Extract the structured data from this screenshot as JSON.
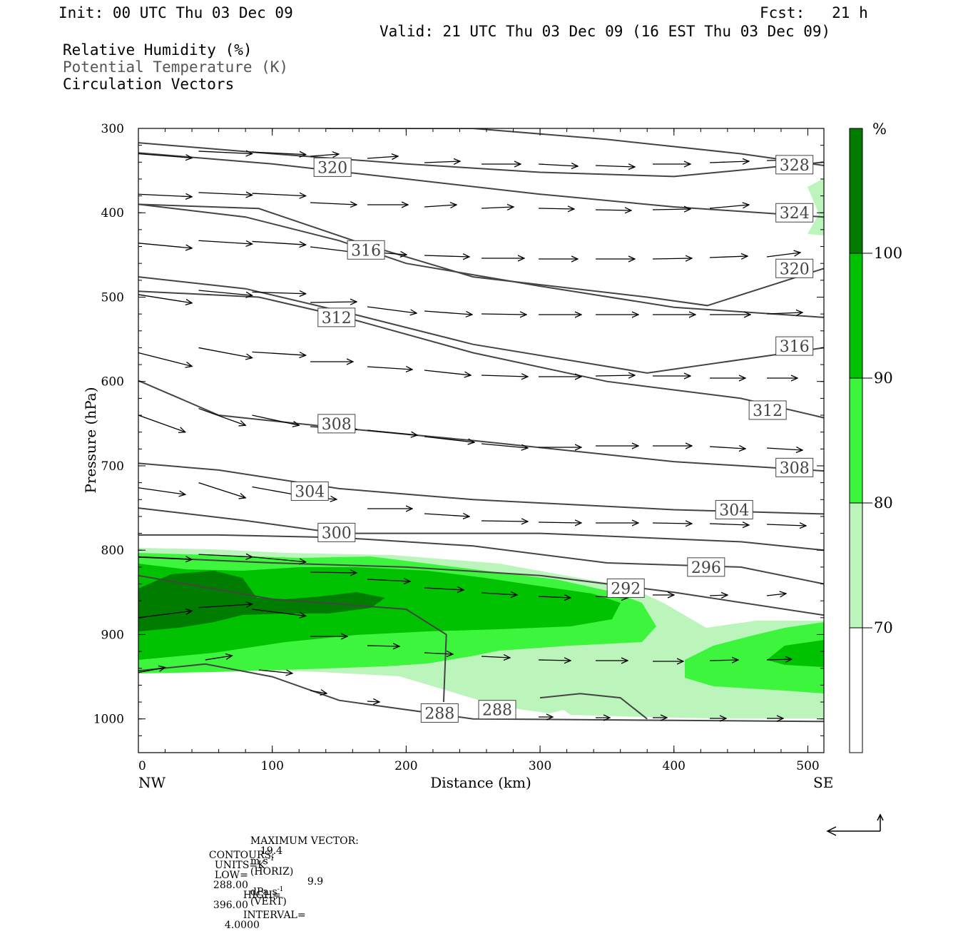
{
  "header": {
    "init": "Init: 00 UTC Thu 03 Dec 09",
    "fcst": "Fcst:   21 h",
    "valid": "Valid: 21 UTC Thu 03 Dec 09 (16 EST Thu 03 Dec 09)",
    "fields": [
      "Relative Humidity (%)",
      "Potential Temperature (K)",
      "Circulation Vectors"
    ]
  },
  "footer": {
    "max_vector_label": "MAXIMUM VECTOR:",
    "max_horiz_value": "19.4",
    "max_horiz_unit": "m s",
    "max_horiz_note": "(HORIZ)",
    "max_vert_value": "9.9",
    "max_vert_unit": "dPa s",
    "max_vert_note": "(VERT)",
    "exponent": "-1",
    "contours_label": "CONTOURS:",
    "units": "UNITS=K",
    "low": "LOW=",
    "low_value": "288.00",
    "high": "HIGH=",
    "high_value": "396.00",
    "interval": "INTERVAL=",
    "interval_value": "4.0000"
  },
  "chart_data": {
    "type": "contour-cross-section",
    "xlabel": "Distance (km)",
    "ylabel": "Pressure (hPa)",
    "xlim": [
      0,
      512
    ],
    "ylim": [
      300,
      1040
    ],
    "x_ticks": [
      "0",
      "100",
      "200",
      "300",
      "400",
      "500"
    ],
    "x_tick_values": [
      0,
      100,
      200,
      300,
      400,
      500
    ],
    "x_end_labels": {
      "left": "NW",
      "right": "SE"
    },
    "y_ticks": [
      "300",
      "400",
      "500",
      "600",
      "700",
      "800",
      "900",
      "1000"
    ],
    "y_tick_values": [
      300,
      400,
      500,
      600,
      700,
      800,
      900,
      1000
    ],
    "colorbar": {
      "unit": "%",
      "levels": [
        "70",
        "80",
        "90",
        "100"
      ],
      "level_values": [
        70,
        80,
        90,
        100
      ],
      "colors": [
        "#ffffff",
        "#bbf5bb",
        "#3df53d",
        "#00c200",
        "#007c00"
      ]
    },
    "theta_contours": [
      {
        "value": 328,
        "label": "328",
        "label_at": [
          490,
          343
        ],
        "points": [
          [
            0,
            317
          ],
          [
            100,
            330
          ],
          [
            200,
            342
          ],
          [
            300,
            352
          ],
          [
            400,
            357
          ],
          [
            512,
            340
          ]
        ]
      },
      {
        "value": 324,
        "label": "324",
        "label_at": [
          490,
          400
        ],
        "points": [
          [
            0,
            329
          ],
          [
            100,
            342
          ],
          [
            200,
            360
          ],
          [
            300,
            378
          ],
          [
            400,
            393
          ],
          [
            512,
            405
          ]
        ]
      },
      {
        "value": 320,
        "label": "320",
        "label_at": [
          145,
          346
        ],
        "points": [
          [
            140,
            300
          ],
          [
            250,
            300
          ],
          [
            350,
            313
          ],
          [
            450,
            330
          ],
          [
            512,
            344
          ]
        ]
      },
      {
        "value": 320,
        "label": "320",
        "label_at": [
          490,
          466
        ],
        "points": [
          [
            0,
            390
          ],
          [
            80,
            405
          ],
          [
            150,
            433
          ],
          [
            200,
            460
          ],
          [
            300,
            487
          ],
          [
            400,
            512
          ],
          [
            512,
            524
          ]
        ]
      },
      {
        "value": 316,
        "label": "316",
        "label_at": [
          170,
          444
        ],
        "points": [
          [
            0,
            390
          ],
          [
            90,
            395
          ],
          [
            170,
            438
          ],
          [
            250,
            476
          ],
          [
            380,
            500
          ],
          [
            425,
            510
          ],
          [
            512,
            466
          ]
        ]
      },
      {
        "value": 316,
        "label": "316",
        "label_at": [
          490,
          558
        ],
        "points": [
          [
            0,
            476
          ],
          [
            80,
            490
          ],
          [
            160,
            520
          ],
          [
            250,
            556
          ],
          [
            380,
            590
          ],
          [
            512,
            560
          ]
        ]
      },
      {
        "value": 312,
        "label": "312",
        "label_at": [
          148,
          524
        ],
        "points": [
          [
            0,
            493
          ],
          [
            90,
            500
          ],
          [
            150,
            522
          ],
          [
            250,
            566
          ],
          [
            350,
            600
          ],
          [
            450,
            620
          ],
          [
            512,
            643
          ]
        ]
      },
      {
        "value": 312,
        "label": "312",
        "label_at": [
          470,
          634
        ],
        "points": [
          [
            0,
            599
          ],
          [
            60,
            640
          ],
          [
            150,
            655
          ],
          [
            250,
            670
          ],
          [
            400,
            695
          ],
          [
            512,
            706
          ]
        ]
      },
      {
        "value": 308,
        "label": "308",
        "label_at": [
          148,
          650
        ],
        "points": [
          [
            0,
            697
          ],
          [
            60,
            705
          ],
          [
            150,
            727
          ],
          [
            250,
            740
          ],
          [
            400,
            752
          ],
          [
            512,
            757
          ]
        ]
      },
      {
        "value": 308,
        "label": "308",
        "label_at": [
          490,
          702
        ],
        "points": [
          [
            0,
            750
          ],
          [
            80,
            765
          ],
          [
            150,
            780
          ],
          [
            300,
            780
          ],
          [
            450,
            790
          ],
          [
            512,
            800
          ]
        ]
      },
      {
        "value": 304,
        "label": "304",
        "label_at": [
          128,
          730
        ],
        "points": [
          [
            0,
            782
          ],
          [
            60,
            782
          ],
          [
            150,
            785
          ],
          [
            250,
            795
          ],
          [
            350,
            815
          ],
          [
            450,
            820
          ],
          [
            512,
            840
          ]
        ]
      },
      {
        "value": 304,
        "label": "304",
        "label_at": [
          445,
          752
        ],
        "points": [
          [
            0,
            808
          ],
          [
            100,
            815
          ],
          [
            200,
            820
          ],
          [
            300,
            830
          ],
          [
            400,
            850
          ],
          [
            512,
            877
          ]
        ]
      },
      {
        "value": 300,
        "label": "300",
        "label_at": [
          148,
          779
        ],
        "points": [
          [
            0,
            830
          ],
          [
            100,
            858
          ],
          [
            200,
            870
          ],
          [
            230,
            900
          ],
          [
            228,
            980
          ]
        ]
      },
      {
        "value": 296,
        "label": "296",
        "label_at": [
          424,
          820
        ],
        "points": [
          [
            0,
            943
          ],
          [
            50,
            935
          ],
          [
            100,
            950
          ],
          [
            150,
            978
          ],
          [
            250,
            1000
          ],
          [
            512,
            1003
          ]
        ]
      },
      {
        "value": 292,
        "label": "292",
        "label_at": [
          364,
          845
        ],
        "points": [
          [
            300,
            975
          ],
          [
            330,
            970
          ],
          [
            360,
            975
          ],
          [
            380,
            1000
          ]
        ]
      },
      {
        "value": 288,
        "label": "288",
        "label_at": [
          225,
          993
        ],
        "points": []
      },
      {
        "value": 288,
        "label": "288",
        "label_at": [
          268,
          989
        ],
        "points": []
      }
    ],
    "vectors": [
      {
        "x": 0,
        "p": 330,
        "dx": 40,
        "dp": 5
      },
      {
        "x": 45,
        "p": 327,
        "dx": 40,
        "dp": 3
      },
      {
        "x": 85,
        "p": 328,
        "dx": 40,
        "dp": 3
      },
      {
        "x": 0,
        "p": 378,
        "dx": 40,
        "dp": 3
      },
      {
        "x": 45,
        "p": 376,
        "dx": 40,
        "dp": 3
      },
      {
        "x": 85,
        "p": 377,
        "dx": 40,
        "dp": 3
      },
      {
        "x": 0,
        "p": 436,
        "dx": 40,
        "dp": 6
      },
      {
        "x": 45,
        "p": 433,
        "dx": 40,
        "dp": 4
      },
      {
        "x": 85,
        "p": 434,
        "dx": 40,
        "dp": 4
      },
      {
        "x": 0,
        "p": 497,
        "dx": 40,
        "dp": 10
      },
      {
        "x": 45,
        "p": 492,
        "dx": 40,
        "dp": 6
      },
      {
        "x": 85,
        "p": 494,
        "dx": 40,
        "dp": 2
      },
      {
        "x": 0,
        "p": 566,
        "dx": 40,
        "dp": 16
      },
      {
        "x": 45,
        "p": 560,
        "dx": 40,
        "dp": 12
      },
      {
        "x": 85,
        "p": 565,
        "dx": 40,
        "dp": 4
      },
      {
        "x": 0,
        "p": 640,
        "dx": 35,
        "dp": 20
      },
      {
        "x": 45,
        "p": 632,
        "dx": 35,
        "dp": 20
      },
      {
        "x": 85,
        "p": 640,
        "dx": 35,
        "dp": 12
      },
      {
        "x": 0,
        "p": 726,
        "dx": 35,
        "dp": 8
      },
      {
        "x": 45,
        "p": 720,
        "dx": 35,
        "dp": 18
      },
      {
        "x": 85,
        "p": 725,
        "dx": 35,
        "dp": 10
      },
      {
        "x": 0,
        "p": 808,
        "dx": 40,
        "dp": 3
      },
      {
        "x": 45,
        "p": 805,
        "dx": 40,
        "dp": 3
      },
      {
        "x": 85,
        "p": 808,
        "dx": 40,
        "dp": 6
      },
      {
        "x": 0,
        "p": 880,
        "dx": 40,
        "dp": -8
      },
      {
        "x": 45,
        "p": 868,
        "dx": 40,
        "dp": -4
      },
      {
        "x": 85,
        "p": 870,
        "dx": 40,
        "dp": 8
      },
      {
        "x": 0,
        "p": 945,
        "dx": 20,
        "dp": -6
      },
      {
        "x": 50,
        "p": 930,
        "dx": 20,
        "dp": -5
      },
      {
        "x": 90,
        "p": 942,
        "dx": 25,
        "dp": 4
      }
    ]
  }
}
